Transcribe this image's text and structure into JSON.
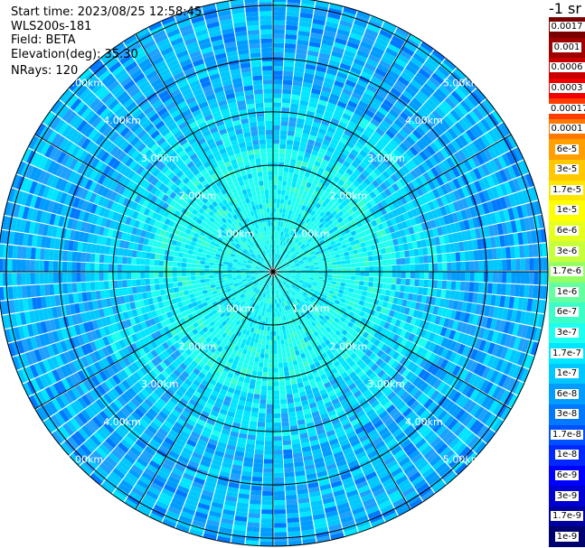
{
  "header": {
    "start_time": "Start time: 2023/08/25 12:58:45",
    "instrument": "WLS200s-181",
    "field": "Field: BETA",
    "elevation": "Elevation(deg): 35.30",
    "nrays": "NRays: 120"
  },
  "colorbar": {
    "unit_label": "-1 sr",
    "levels": [
      "0.0017",
      "0.001",
      "0.0006",
      "0.0003",
      "0.00017",
      "0.0001",
      "6e-5",
      "3e-5",
      "1.7e-5",
      "1e-5",
      "6e-6",
      "3e-6",
      "1.7e-6",
      "1e-6",
      "6e-7",
      "3e-7",
      "1.7e-7",
      "1e-7",
      "6e-8",
      "3e-8",
      "1.7e-8",
      "1e-8",
      "6e-9",
      "3e-9",
      "1.7e-9",
      "1e-9"
    ],
    "colors": [
      "#7a0000",
      "#a00000",
      "#c80000",
      "#f00000",
      "#ff3c00",
      "#ff7800",
      "#ffa000",
      "#ffc800",
      "#ffe600",
      "#ffff00",
      "#e6ff1e",
      "#c8ff3c",
      "#96ff64",
      "#64ffa0",
      "#3cffc8",
      "#1efff0",
      "#00e6ff",
      "#00c8ff",
      "#009cff",
      "#0078ff",
      "#0050ff",
      "#0028ff",
      "#0000ff",
      "#0000d2",
      "#0000a0",
      "#00006e"
    ]
  },
  "chart_data": {
    "type": "heatmap",
    "projection": "polar (PPI)",
    "field": "BETA",
    "n_rays": 120,
    "range_rings": [
      "1.00km",
      "2.00km",
      "3.00km",
      "4.00km",
      "5.00km"
    ],
    "azimuth_lines_deg": [
      0,
      30,
      60,
      90,
      120,
      150,
      180,
      210,
      240,
      270,
      300,
      330
    ],
    "dominant_levels": [
      "1.7e-7",
      "1e-7",
      "6e-8",
      "3e-8",
      "1.7e-8"
    ],
    "legend_placement": "right"
  }
}
